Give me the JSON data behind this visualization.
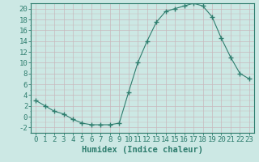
{
  "x": [
    0,
    1,
    2,
    3,
    4,
    5,
    6,
    7,
    8,
    9,
    10,
    11,
    12,
    13,
    14,
    15,
    16,
    17,
    18,
    19,
    20,
    21,
    22,
    23
  ],
  "y": [
    3,
    2,
    1,
    0.5,
    -0.5,
    -1.2,
    -1.5,
    -1.5,
    -1.5,
    -1.2,
    4.5,
    10,
    14,
    17.5,
    19.5,
    20.0,
    20.5,
    21.0,
    20.5,
    18.5,
    14.5,
    11,
    8,
    7
  ],
  "line_color": "#2e7d6e",
  "marker": "+",
  "marker_size": 4,
  "bg_color": "#cce8e4",
  "grid_color": "#c8b8bc",
  "xlabel": "Humidex (Indice chaleur)",
  "ylabel": "",
  "title": "",
  "xlim": [
    -0.5,
    23.5
  ],
  "ylim": [
    -3,
    21
  ],
  "yticks": [
    -2,
    0,
    2,
    4,
    6,
    8,
    10,
    12,
    14,
    16,
    18,
    20
  ],
  "xticks": [
    0,
    1,
    2,
    3,
    4,
    5,
    6,
    7,
    8,
    9,
    10,
    11,
    12,
    13,
    14,
    15,
    16,
    17,
    18,
    19,
    20,
    21,
    22,
    23
  ],
  "tick_color": "#2e7d6e",
  "axis_color": "#2e7d6e",
  "label_color": "#2e7d6e",
  "font_size": 6.5,
  "xlabel_fontsize": 7.5
}
